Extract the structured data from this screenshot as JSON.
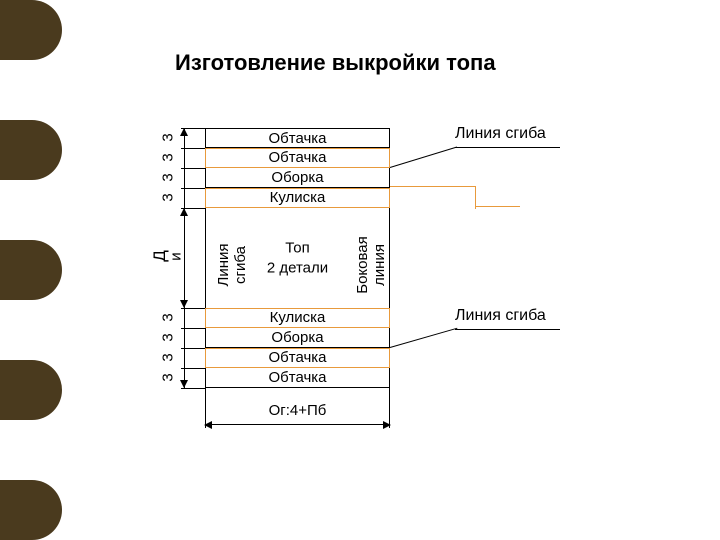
{
  "title": "Изготовление выкройки топа",
  "colors": {
    "orange": "#e89a3c",
    "scallop_dark": "#4a3a1e",
    "scallop_light": "#ffffff",
    "line": "#000000"
  },
  "strips_top": [
    {
      "label": "Обтачка",
      "orange": false
    },
    {
      "label": "Обтачка",
      "orange": true
    },
    {
      "label": "Оборка",
      "orange": false
    },
    {
      "label": "Кулиска",
      "orange": true
    }
  ],
  "center": {
    "main": "Топ",
    "sub": "2 детали",
    "left_label": "Линия\nсгиба",
    "right_label": "Боковая\nлиния"
  },
  "strips_bottom": [
    {
      "label": "Кулиска",
      "orange": true
    },
    {
      "label": "Оборка",
      "orange": false
    },
    {
      "label": "Обтачка",
      "orange": true
    },
    {
      "label": "Обтачка",
      "orange": false
    }
  ],
  "dims": {
    "seg": "3",
    "center_d": "Д",
    "center_i": "и"
  },
  "width_label": "Ог:4+Пб",
  "callouts": {
    "top": "Линия сгиба",
    "bottom": "Линия сгиба"
  },
  "scallops": 9
}
